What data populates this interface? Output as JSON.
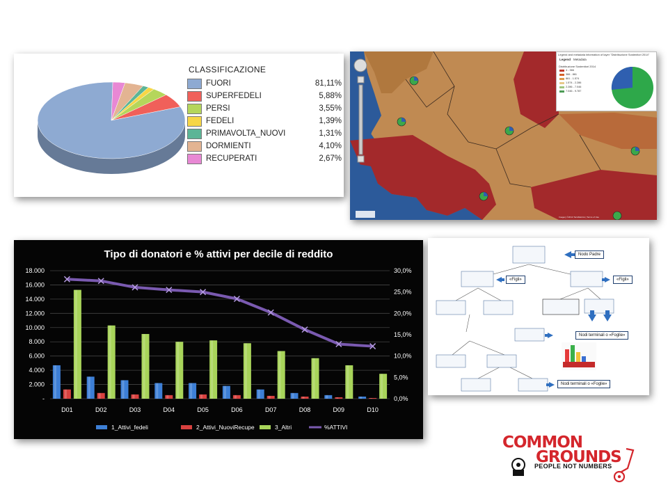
{
  "pie": {
    "legend_title": "CLASSIFICAZIONE",
    "items": [
      {
        "name": "FUORI",
        "value": "81,11%",
        "color": "#8eaad2"
      },
      {
        "name": "SUPERFEDELI",
        "value": "5,88%",
        "color": "#f0605a"
      },
      {
        "name": "PERSI",
        "value": "3,55%",
        "color": "#b5d65b"
      },
      {
        "name": "FEDELI",
        "value": "1,39%",
        "color": "#f7d646"
      },
      {
        "name": "PRIMAVOLTA_NUOVI",
        "value": "1,31%",
        "color": "#5cb596"
      },
      {
        "name": "DORMIENTI",
        "value": "4,10%",
        "color": "#e3b492"
      },
      {
        "name": "RECUPERATI",
        "value": "2,67%",
        "color": "#e888d4"
      }
    ]
  },
  "map": {
    "legend_title": "Legend and metadata information of layer \"Distribuzione Sostenitori 2014\"",
    "tab_legend": "Legend",
    "tab_metadata": "Metadata",
    "layer_title": "Distribuzione Sostenitori 2014",
    "legend_rows": [
      {
        "label": "4 - 366",
        "color": "#c0392b"
      },
      {
        "label": "366 - 861",
        "color": "#d4622a"
      },
      {
        "label": "861 - 1.574",
        "color": "#dd9a4e"
      },
      {
        "label": "1.574 - 2.286",
        "color": "#e7c98a"
      },
      {
        "label": "2.286 - 7.046",
        "color": "#9fc47e"
      },
      {
        "label": "7.046 - 9.787",
        "color": "#4c9b55"
      }
    ],
    "copyright": "Imagery ©2014 TerraMetrics | Terms of Use",
    "colors": {
      "sea": "#2c5a9a",
      "high": "#a3292b",
      "mid": "#b8713d",
      "low": "#c99058"
    }
  },
  "chart_data": {
    "type": "bar",
    "title": "Tipo di donatori e % attivi  per decile di reddito",
    "categories": [
      "D01",
      "D02",
      "D03",
      "D04",
      "D05",
      "D06",
      "D07",
      "D08",
      "D09",
      "D10"
    ],
    "series": [
      {
        "name": "1_Attivi_fedeli",
        "kind": "bar",
        "color": "#3d7fd6",
        "values": [
          4700,
          3100,
          2600,
          2200,
          2200,
          1800,
          1300,
          800,
          500,
          300
        ]
      },
      {
        "name": "2_Attivi_NuoviRecupe",
        "kind": "bar",
        "color": "#d8413f",
        "values": [
          1300,
          800,
          600,
          500,
          600,
          500,
          400,
          300,
          200,
          100
        ]
      },
      {
        "name": "3_Altri",
        "kind": "bar",
        "color": "#a8d45a",
        "values": [
          15300,
          10300,
          9100,
          8000,
          8200,
          7800,
          6700,
          5700,
          4700,
          3500
        ]
      },
      {
        "name": "%ATTIVI",
        "kind": "line",
        "axis": "right",
        "color": "#7a5ab0",
        "values": [
          28.0,
          27.6,
          26.1,
          25.5,
          25.0,
          23.4,
          20.2,
          16.2,
          12.8,
          12.3
        ]
      }
    ],
    "y_left": {
      "min": 0,
      "max": 18000,
      "ticks": [
        "-",
        "2.000",
        "4.000",
        "6.000",
        "8.000",
        "10.000",
        "12.000",
        "14.000",
        "16.000",
        "18.000"
      ]
    },
    "y_right": {
      "min": 0,
      "max": 30,
      "ticks": [
        "0,0%",
        "5,0%",
        "10,0%",
        "15,0%",
        "20,0%",
        "25,0%",
        "30,0%"
      ]
    },
    "grid": true,
    "legend_position": "bottom"
  },
  "tree": {
    "labels": [
      "Nodo Padre",
      "«Figli»",
      "«Figli»",
      "Nodi terminali o «Foglie»",
      "Nodi terminali o «Foglie»"
    ]
  },
  "logo": {
    "line1": "COMMON",
    "line2": "GROUNDS",
    "tagline": "PEOPLE NOT NUMBERS"
  }
}
